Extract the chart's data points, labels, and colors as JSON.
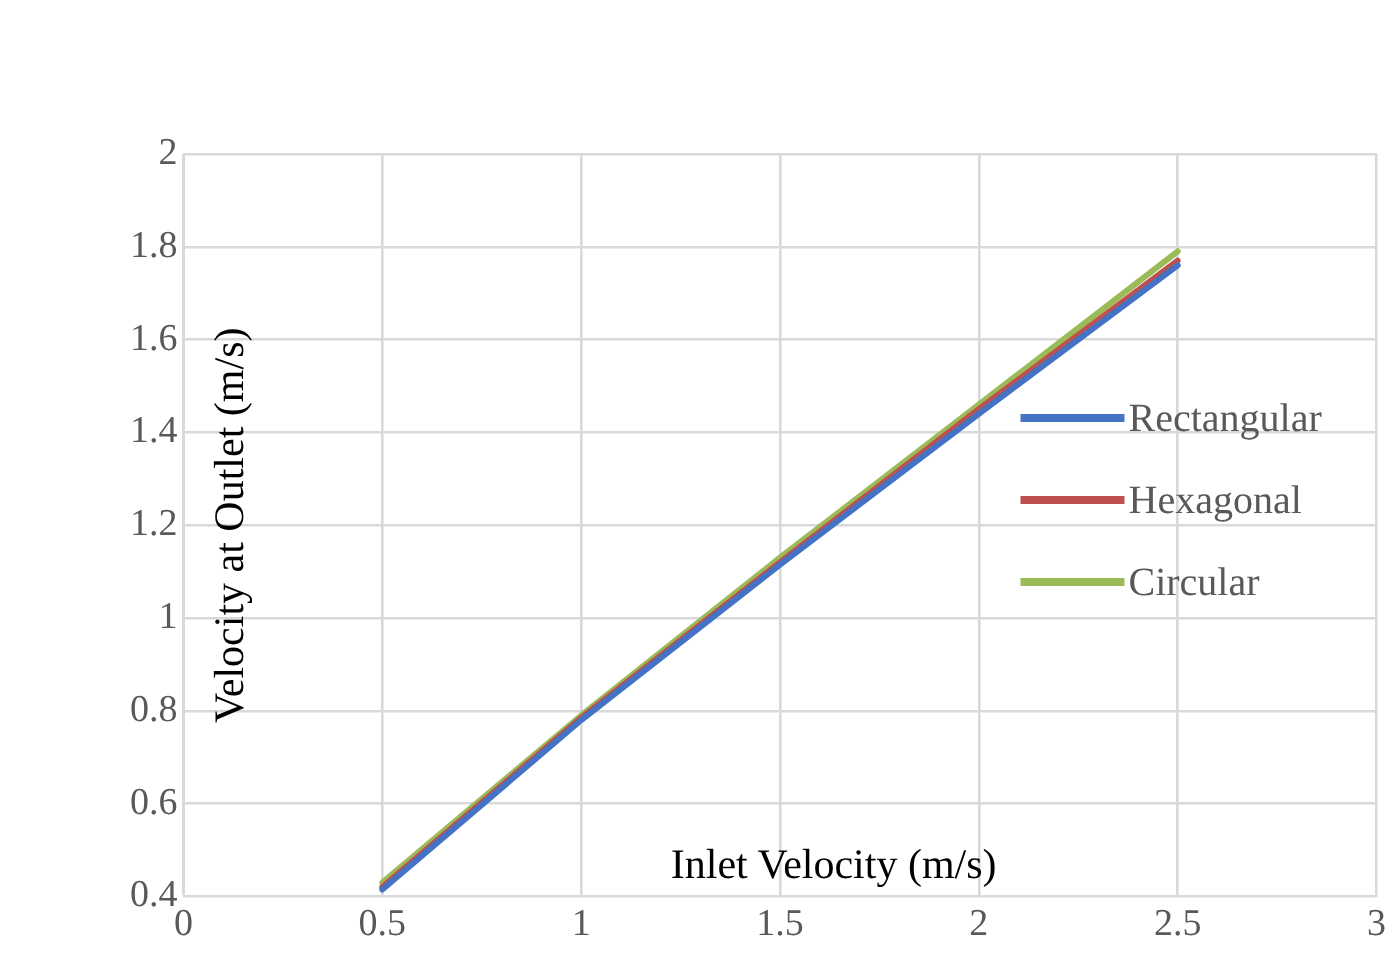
{
  "chart_data": {
    "type": "line",
    "xlabel": "Inlet Velocity (m/s)",
    "ylabel": "Velocity at Outlet (m/s)",
    "x": [
      0.5,
      1,
      1.5,
      2,
      2.5
    ],
    "series": [
      {
        "name": "Rectangular",
        "color": "#4472c4",
        "values": [
          0.415,
          0.78,
          1.115,
          1.44,
          1.76
        ]
      },
      {
        "name": "Hexagonal",
        "color": "#c0504d",
        "values": [
          0.42,
          0.785,
          1.12,
          1.45,
          1.77
        ]
      },
      {
        "name": "Circular",
        "color": "#9bbb59",
        "values": [
          0.43,
          0.79,
          1.13,
          1.46,
          1.79
        ]
      }
    ],
    "xlim": [
      0,
      3
    ],
    "xticks": [
      0,
      0.5,
      1,
      1.5,
      2,
      2.5,
      3
    ],
    "ylim": [
      0.4,
      2
    ],
    "yticks": [
      0.4,
      0.6,
      0.8,
      1,
      1.2,
      1.4,
      1.6,
      1.8,
      2
    ],
    "grid": true,
    "legend": "right",
    "marker": "none",
    "line_style": "solid"
  }
}
